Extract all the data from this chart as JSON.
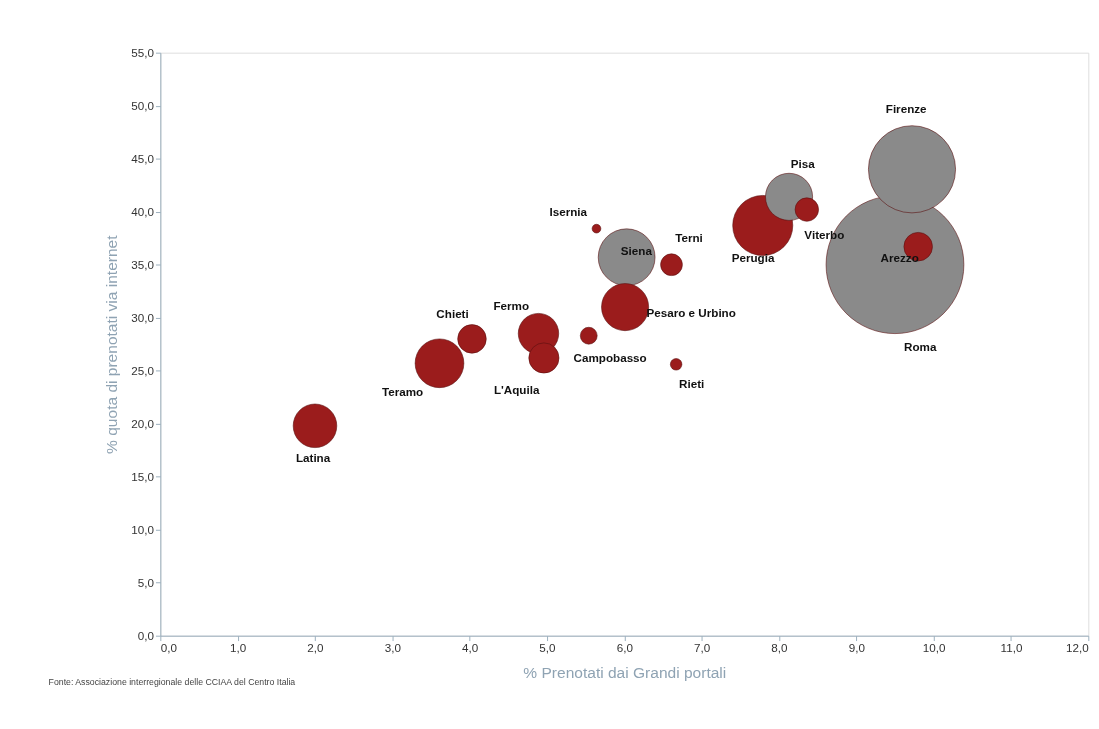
{
  "chart_data": {
    "type": "bubble",
    "xlabel": "% Prenotati dai Grandi portali",
    "ylabel": "% quota di  prenotati via internet",
    "series": [
      {
        "color": "#9b1c1c",
        "x": [
          2.0,
          3.61,
          4.03,
          4.89,
          4.96,
          5.54,
          5.64,
          6.01,
          6.61,
          6.67,
          7.79,
          8.36,
          9.8
        ],
        "values": [
          19.8,
          25.7,
          28.0,
          28.5,
          26.2,
          28.3,
          38.4,
          31.0,
          35.0,
          25.6,
          38.7,
          40.2,
          36.7
        ],
        "sizes": [
          0.1,
          0.125,
          0.043,
          0.086,
          0.048,
          0.015,
          0.004,
          0.117,
          0.025,
          0.007,
          0.19,
          0.029,
          0.043
        ]
      },
      {
        "color": "#8a8a8a",
        "x": [
          6.03,
          8.13,
          9.72,
          9.5
        ],
        "values": [
          35.7,
          41.4,
          44.0,
          35.0
        ],
        "sizes": [
          0.17,
          0.117,
          0.4,
          1.0
        ]
      }
    ],
    "xlim": [
      0,
      12
    ],
    "xticks": [
      {
        "value": 0,
        "label": "0,0"
      },
      {
        "value": 1,
        "label": "1,0"
      },
      {
        "value": 2,
        "label": "2,0"
      },
      {
        "value": 3,
        "label": "3,0"
      },
      {
        "value": 4,
        "label": "4,0"
      },
      {
        "value": 5,
        "label": "5,0"
      },
      {
        "value": 6,
        "label": "6,0"
      },
      {
        "value": 7,
        "label": "7,0"
      },
      {
        "value": 8,
        "label": "8,0"
      },
      {
        "value": 9,
        "label": "9,0"
      },
      {
        "value": 10,
        "label": "10,0"
      },
      {
        "value": 11,
        "label": "11,0"
      },
      {
        "value": 12,
        "label": "12,0"
      }
    ],
    "ylim": [
      0,
      55
    ],
    "yticks": [
      {
        "value": 0,
        "label": "0,0"
      },
      {
        "value": 5,
        "label": "5,0"
      },
      {
        "value": 10,
        "label": "10,0"
      },
      {
        "value": 15,
        "label": "15,0"
      },
      {
        "value": 20,
        "label": "20,0"
      },
      {
        "value": 25,
        "label": "25,0"
      },
      {
        "value": 30,
        "label": "30,0"
      },
      {
        "value": 35,
        "label": "35,0"
      },
      {
        "value": 40,
        "label": "40,0"
      },
      {
        "value": 45,
        "label": "45,0"
      },
      {
        "value": 50,
        "label": "50,0"
      },
      {
        "value": 55,
        "label": "55,0"
      }
    ],
    "grid": false,
    "legend": false,
    "annotations": [
      {
        "text": "Latina",
        "x": 2.0,
        "y": 19.8
      },
      {
        "text": "Teramo",
        "x": 3.61,
        "y": 25.7
      },
      {
        "text": "Chieti",
        "x": 4.03,
        "y": 28.0
      },
      {
        "text": "Fermo",
        "x": 4.89,
        "y": 28.5
      },
      {
        "text": "L'Aquila",
        "x": 4.96,
        "y": 26.2
      },
      {
        "text": "Campobasso",
        "x": 5.54,
        "y": 28.3
      },
      {
        "text": "Isernia",
        "x": 5.64,
        "y": 38.4
      },
      {
        "text": "Pesaro e Urbino",
        "x": 6.01,
        "y": 31.0
      },
      {
        "text": "Terni",
        "x": 6.61,
        "y": 35.0
      },
      {
        "text": "Rieti",
        "x": 6.67,
        "y": 25.6
      },
      {
        "text": "Perugia",
        "x": 7.79,
        "y": 38.7
      },
      {
        "text": "Viterbo",
        "x": 8.36,
        "y": 40.2
      },
      {
        "text": "Arezzo",
        "x": 9.8,
        "y": 36.7
      },
      {
        "text": "Siena",
        "x": 6.03,
        "y": 35.7
      },
      {
        "text": "Pisa",
        "x": 8.13,
        "y": 41.4
      },
      {
        "text": "Firenze",
        "x": 9.72,
        "y": 48.6
      },
      {
        "text": "Roma",
        "x": 9.7,
        "y": 28.5
      },
      "Fonte: Associazione interregionale delle CCIAA del Centro Italia"
    ]
  }
}
